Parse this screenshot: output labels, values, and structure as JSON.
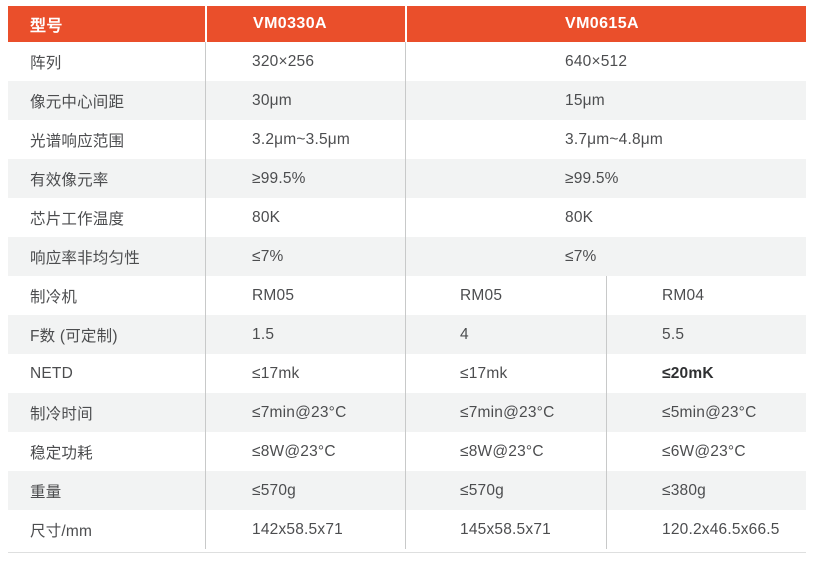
{
  "colors": {
    "accent": "#EA4F2B",
    "zebra_row": "#F2F3F3",
    "header_text": "#FFFFFF",
    "body_text": "#4C4D4F",
    "divider": "#C8C9C9"
  },
  "table": {
    "header": {
      "model_label": "型号",
      "vm0330a_label": "VM0330A",
      "vm0615a_label": "VM0615A"
    },
    "rows": [
      {
        "label": "阵列",
        "vm0330a": "320×256",
        "vm0615a": "640×512"
      },
      {
        "label": "像元中心间距",
        "vm0330a": "30μm",
        "vm0615a": "15μm"
      },
      {
        "label": "光谱响应范围",
        "vm0330a": "3.2μm~3.5μm",
        "vm0615a": "3.7μm~4.8μm"
      },
      {
        "label": "有效像元率",
        "vm0330a": "≥99.5%",
        "vm0615a": "≥99.5%"
      },
      {
        "label": "芯片工作温度",
        "vm0330a": "80K",
        "vm0615a": "80K"
      },
      {
        "label": "响应率非均匀性",
        "vm0330a": "≤7%",
        "vm0615a": "≤7%"
      },
      {
        "label": "制冷机",
        "vm0330a": "RM05",
        "vm0615a_rm05": "RM05",
        "vm0615a_rm04": "RM04"
      },
      {
        "label": "F数 (可定制)",
        "vm0330a": "1.5",
        "vm0615a_rm05": "4",
        "vm0615a_rm04": "5.5"
      },
      {
        "label": "NETD",
        "vm0330a": "≤17mk",
        "vm0615a_rm05": "≤17mk",
        "vm0615a_rm04": "≤20mK"
      },
      {
        "label": "制冷时间",
        "vm0330a": "≤7min@23°C",
        "vm0615a_rm05": "≤7min@23°C",
        "vm0615a_rm04": "≤5min@23°C"
      },
      {
        "label": "稳定功耗",
        "vm0330a": "≤8W@23°C",
        "vm0615a_rm05": "≤8W@23°C",
        "vm0615a_rm04": "≤6W@23°C"
      },
      {
        "label": "重量",
        "vm0330a": "≤570g",
        "vm0615a_rm05": "≤570g",
        "vm0615a_rm04": "≤380g"
      },
      {
        "label": "尺寸/mm",
        "vm0330a": "142x58.5x71",
        "vm0615a_rm05": "145x58.5x71",
        "vm0615a_rm04": "120.2x46.5x66.5"
      }
    ]
  }
}
